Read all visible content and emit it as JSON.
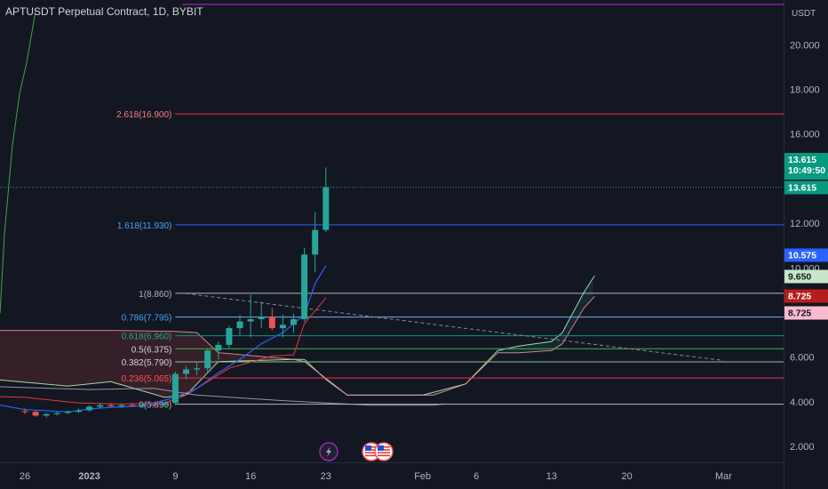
{
  "header": {
    "title": "APTUSDT Perpetual Contract, 1D, BYBIT"
  },
  "price_axis": {
    "currency": "USDT",
    "ticks": [
      "20.000",
      "18.000",
      "16.000",
      "12.000",
      "10.000",
      "6.000",
      "4.000",
      "2.000"
    ]
  },
  "time_axis": {
    "ticks": [
      "26",
      "2023",
      "9",
      "16",
      "23",
      "Feb",
      "6",
      "13",
      "20",
      "Mar"
    ]
  },
  "badges": {
    "last_price": "13.615",
    "countdown": "10:49:50",
    "tenkan": "13.615",
    "kijun": "10.575",
    "span_a": "9.650",
    "span_b_top": "8.725",
    "span_b": "8.725"
  },
  "colors": {
    "background": "#131722",
    "up": "#26a69a",
    "down": "#ef5350",
    "accent_blue": "#2962ff",
    "grid_text": "#b2b5be"
  },
  "chart_data": {
    "type": "candlestick",
    "title": "APTUSDT Perpetual Contract, 1D, BYBIT",
    "ylabel": "USDT",
    "ylim": [
      1.5,
      21.5
    ],
    "x_axis_dates": [
      "Dec 26",
      "Jan 1 2023",
      "Jan 9",
      "Jan 16",
      "Jan 23",
      "Feb 1",
      "Feb 6",
      "Feb 13",
      "Feb 20",
      "Mar 1"
    ],
    "candles": [
      {
        "date": "Dec 26",
        "o": 3.58,
        "h": 3.7,
        "l": 3.45,
        "c": 3.55
      },
      {
        "date": "Dec 27",
        "o": 3.55,
        "h": 3.62,
        "l": 3.32,
        "c": 3.38
      },
      {
        "date": "Dec 28",
        "o": 3.38,
        "h": 3.5,
        "l": 3.3,
        "c": 3.45
      },
      {
        "date": "Dec 29",
        "o": 3.45,
        "h": 3.55,
        "l": 3.38,
        "c": 3.5
      },
      {
        "date": "Dec 30",
        "o": 3.5,
        "h": 3.6,
        "l": 3.45,
        "c": 3.55
      },
      {
        "date": "Dec 31",
        "o": 3.55,
        "h": 3.7,
        "l": 3.5,
        "c": 3.62
      },
      {
        "date": "Jan 1",
        "o": 3.62,
        "h": 3.85,
        "l": 3.55,
        "c": 3.78
      },
      {
        "date": "Jan 2",
        "o": 3.78,
        "h": 3.95,
        "l": 3.7,
        "c": 3.85
      },
      {
        "date": "Jan 3",
        "o": 3.85,
        "h": 3.95,
        "l": 3.75,
        "c": 3.8
      },
      {
        "date": "Jan 4",
        "o": 3.8,
        "h": 3.9,
        "l": 3.72,
        "c": 3.85
      },
      {
        "date": "Jan 5",
        "o": 3.85,
        "h": 3.95,
        "l": 3.78,
        "c": 3.82
      },
      {
        "date": "Jan 6",
        "o": 3.82,
        "h": 3.95,
        "l": 3.75,
        "c": 3.88
      },
      {
        "date": "Jan 7",
        "o": 3.88,
        "h": 3.98,
        "l": 3.8,
        "c": 3.85
      },
      {
        "date": "Jan 8",
        "o": 3.85,
        "h": 4.0,
        "l": 3.8,
        "c": 3.95
      },
      {
        "date": "Jan 9",
        "o": 3.95,
        "h": 5.35,
        "l": 3.85,
        "c": 5.25
      },
      {
        "date": "Jan 10",
        "o": 5.25,
        "h": 5.6,
        "l": 5.0,
        "c": 5.45
      },
      {
        "date": "Jan 11",
        "o": 5.45,
        "h": 5.8,
        "l": 5.2,
        "c": 5.5
      },
      {
        "date": "Jan 12",
        "o": 5.5,
        "h": 6.4,
        "l": 5.3,
        "c": 6.3
      },
      {
        "date": "Jan 13",
        "o": 6.3,
        "h": 6.7,
        "l": 5.9,
        "c": 6.55
      },
      {
        "date": "Jan 14",
        "o": 6.55,
        "h": 7.4,
        "l": 6.4,
        "c": 7.3
      },
      {
        "date": "Jan 15",
        "o": 7.3,
        "h": 7.9,
        "l": 7.0,
        "c": 7.6
      },
      {
        "date": "Jan 16",
        "o": 7.6,
        "h": 8.8,
        "l": 6.9,
        "c": 7.7
      },
      {
        "date": "Jan 17",
        "o": 7.7,
        "h": 8.5,
        "l": 7.3,
        "c": 7.8
      },
      {
        "date": "Jan 18",
        "o": 7.8,
        "h": 8.2,
        "l": 7.2,
        "c": 7.3
      },
      {
        "date": "Jan 19",
        "o": 7.3,
        "h": 7.9,
        "l": 6.9,
        "c": 7.45
      },
      {
        "date": "Jan 20",
        "o": 7.45,
        "h": 7.95,
        "l": 7.1,
        "c": 7.7
      },
      {
        "date": "Jan 21",
        "o": 7.7,
        "h": 10.9,
        "l": 7.6,
        "c": 10.6
      },
      {
        "date": "Jan 22",
        "o": 10.6,
        "h": 12.5,
        "l": 9.8,
        "c": 11.7
      },
      {
        "date": "Jan 23",
        "o": 11.7,
        "h": 14.5,
        "l": 11.6,
        "c": 13.615
      }
    ],
    "fib_levels": [
      {
        "label": "0(3.890)",
        "value": 3.89
      },
      {
        "label": "0.236(5.065)",
        "value": 5.065
      },
      {
        "label": "0.382(5.790)",
        "value": 5.79
      },
      {
        "label": "0.5(6.375)",
        "value": 6.375
      },
      {
        "label": "0.618(6.960)",
        "value": 6.96
      },
      {
        "label": "0.786(7.795)",
        "value": 7.795
      },
      {
        "label": "1(8.860)",
        "value": 8.86
      },
      {
        "label": "1.618(11.930)",
        "value": 11.93
      },
      {
        "label": "2.618(16.900)",
        "value": 16.9
      }
    ],
    "top_line_value": 21.4,
    "current_price": 13.615,
    "trendline": {
      "x": [
        "Jan 10",
        "Mar 1"
      ],
      "y": [
        8.85,
        5.85
      ]
    },
    "tenkan_sen": {
      "x": [
        "Dec 22",
        "Dec 26",
        "Dec 30",
        "Jan 2",
        "Jan 6",
        "Jan 9",
        "Jan 11",
        "Jan 13",
        "Jan 15",
        "Jan 17",
        "Jan 19",
        "Jan 21",
        "Jan 22",
        "Jan 23"
      ],
      "y": [
        4.0,
        3.65,
        3.55,
        3.72,
        3.82,
        4.2,
        4.6,
        5.3,
        5.9,
        6.6,
        7.1,
        7.9,
        9.3,
        10.1
      ]
    },
    "kijun_sen": {
      "x": [
        "Dec 22",
        "Dec 26",
        "Dec 31",
        "Jan 4",
        "Jan 8",
        "Jan 10",
        "Jan 12",
        "Jan 14",
        "Jan 18",
        "Jan 20",
        "Jan 21",
        "Jan 23"
      ],
      "y": [
        4.25,
        4.2,
        3.95,
        3.9,
        3.95,
        4.3,
        4.9,
        5.5,
        6.05,
        6.1,
        7.5,
        8.65
      ]
    },
    "chikou_span": {
      "x": [
        "Dec 15",
        "Dec 16",
        "Dec 17",
        "Dec 18",
        "Dec 19",
        "Dec 20"
      ],
      "y": [
        7.95,
        11.5,
        15.5,
        17.8,
        19.2,
        21.5
      ]
    },
    "cloud_span_a": {
      "x": [
        "Dec 22",
        "Dec 30",
        "Jan 3",
        "Jan 8",
        "Jan 10",
        "Jan 13",
        "Jan 20",
        "Jan 21",
        "Jan 23",
        "Jan 25",
        "Feb 1",
        "Feb 5",
        "Feb 8",
        "Feb 10",
        "Feb 13",
        "Feb 14",
        "Feb 16",
        "Feb 17"
      ],
      "y": [
        5.05,
        4.7,
        4.9,
        4.2,
        4.3,
        5.8,
        5.9,
        5.9,
        5.0,
        4.3,
        4.3,
        4.8,
        6.3,
        6.5,
        6.7,
        7.1,
        8.9,
        9.65
      ]
    },
    "cloud_span_b": {
      "x": [
        "Dec 22",
        "Jan 3",
        "Jan 9",
        "Jan 11",
        "Jan 13",
        "Jan 20",
        "Jan 21",
        "Jan 25",
        "Feb 2",
        "Feb 5",
        "Feb 8",
        "Feb 10",
        "Feb 13",
        "Feb 14",
        "Feb 16",
        "Feb 17"
      ],
      "y": [
        7.2,
        7.2,
        7.15,
        7.1,
        6.2,
        5.9,
        5.8,
        4.3,
        4.3,
        4.8,
        6.2,
        6.2,
        6.3,
        6.6,
        8.2,
        8.725
      ]
    },
    "lower_cloud_line": {
      "x": [
        "Dec 22",
        "Jan 1",
        "Jan 7",
        "Jan 9",
        "Jan 11",
        "Jan 19",
        "Jan 27",
        "Feb 2",
        "Feb 3"
      ],
      "y": [
        4.7,
        4.55,
        4.6,
        4.45,
        4.3,
        4.05,
        3.85,
        3.85,
        3.9
      ]
    },
    "markers": [
      "lightning-icon",
      "us-flag-icon",
      "us-flag-icon"
    ]
  }
}
